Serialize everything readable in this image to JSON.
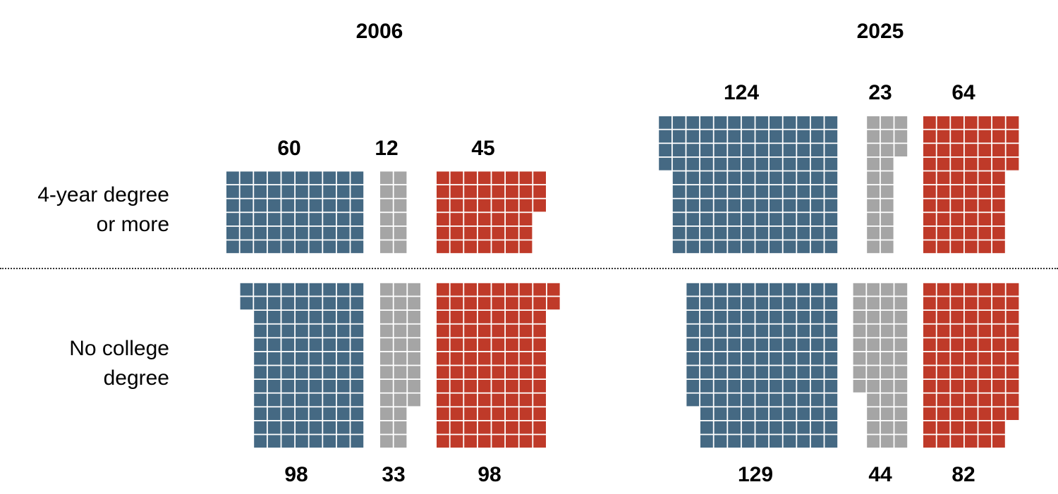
{
  "colors": {
    "blue": "#456983",
    "gray": "#a5a5a5",
    "red": "#bf3a29"
  },
  "chart_data": {
    "type": "waffle",
    "title": "",
    "unit_note": "",
    "years": [
      "2006",
      "2025"
    ],
    "rows": [
      "4-year degree or more",
      "No college degree"
    ],
    "row_labels": [
      {
        "line1": "4-year degree",
        "line2": "or more"
      },
      {
        "line1": "No college",
        "line2": "degree"
      }
    ],
    "series_colors": [
      "blue",
      "gray",
      "red"
    ],
    "panels": [
      {
        "year": "2006",
        "row": "4-year degree or more",
        "values": [
          60,
          12,
          45
        ],
        "labels": [
          "60",
          "12",
          "45"
        ]
      },
      {
        "year": "2006",
        "row": "No college degree",
        "values": [
          98,
          33,
          98
        ],
        "labels": [
          "98",
          "33",
          "98"
        ]
      },
      {
        "year": "2025",
        "row": "4-year degree or more",
        "values": [
          124,
          23,
          64
        ],
        "labels": [
          "124",
          "23",
          "64"
        ]
      },
      {
        "year": "2025",
        "row": "No college degree",
        "values": [
          129,
          44,
          82
        ],
        "labels": [
          "129",
          "44",
          "82"
        ]
      }
    ]
  }
}
